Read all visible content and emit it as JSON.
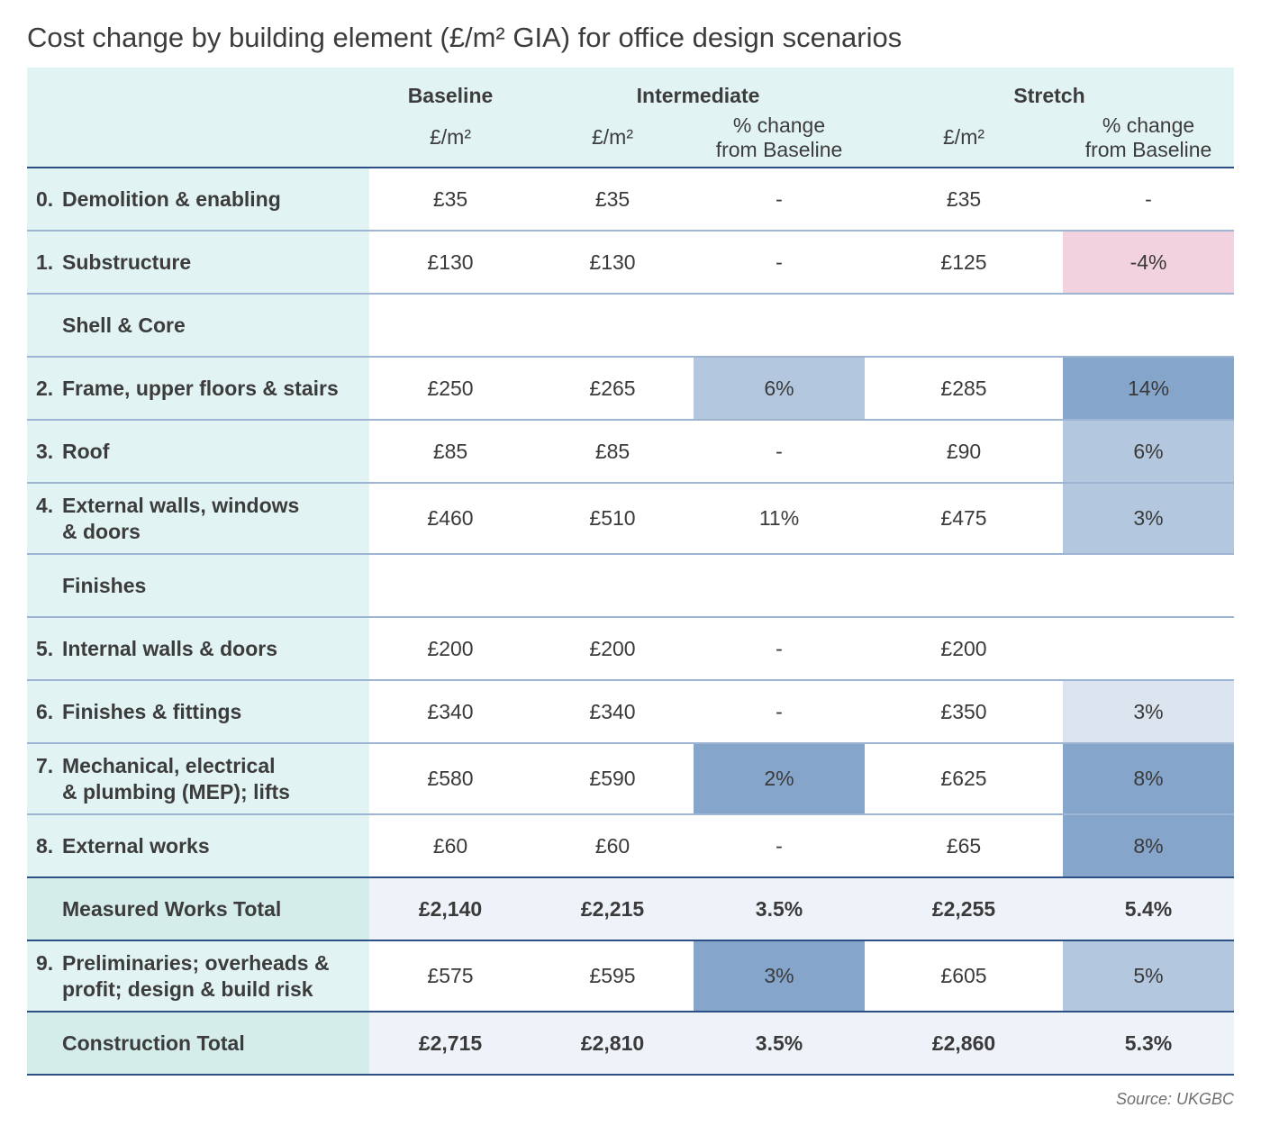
{
  "title": "Cost change by building element (£/m² GIA) for office design scenarios",
  "source": "Source: UKGBC",
  "colors": {
    "header_bg": "#e2f3f3",
    "total_bg": "#eef3f9",
    "negative": "#f2d2de",
    "light_blue": "#dbe4ef",
    "medium_blue": "#b3c7df",
    "dark_blue": "#85a5cb",
    "rule": "#2c4f86"
  },
  "chart_data": {
    "type": "table",
    "column_groups": [
      "Baseline",
      "Intermediate",
      "Stretch"
    ],
    "columns": [
      "£/m²",
      "£/m²",
      "% change\nfrom Baseline",
      "£/m²",
      "% change\nfrom Baseline"
    ],
    "rows": [
      {
        "num": "0.",
        "label": "Demolition & enabling",
        "cells": [
          "£35",
          "£35",
          "-",
          "£35",
          "-"
        ]
      },
      {
        "num": "1.",
        "label": "Substructure",
        "cells": [
          "£130",
          "£130",
          "-",
          "£125",
          "-4%"
        ]
      },
      {
        "section": "Shell & Core"
      },
      {
        "num": "2.",
        "label": "Frame, upper floors & stairs",
        "cells": [
          "£250",
          "£265",
          "6%",
          "£285",
          "14%"
        ]
      },
      {
        "num": "3.",
        "label": "Roof",
        "cells": [
          "£85",
          "£85",
          "-",
          "£90",
          "6%"
        ]
      },
      {
        "num": "4.",
        "label": "External walls, windows\n& doors",
        "cells": [
          "£460",
          "£510",
          "11%",
          "£475",
          "3%"
        ]
      },
      {
        "section": "Finishes"
      },
      {
        "num": "5.",
        "label": "Internal walls & doors",
        "cells": [
          "£200",
          "£200",
          "-",
          "£200",
          ""
        ]
      },
      {
        "num": "6.",
        "label": "Finishes & fittings",
        "cells": [
          "£340",
          "£340",
          "-",
          "£350",
          "3%"
        ]
      },
      {
        "num": "7.",
        "label": "Mechanical, electrical\n& plumbing (MEP); lifts",
        "cells": [
          "£580",
          "£590",
          "2%",
          "£625",
          "8%"
        ]
      },
      {
        "num": "8.",
        "label": "External works",
        "cells": [
          "£60",
          "£60",
          "-",
          "£65",
          "8%"
        ]
      },
      {
        "total": true,
        "label": "Measured Works Total",
        "cells": [
          "£2,140",
          "£2,215",
          "3.5%",
          "£2,255",
          "5.4%"
        ]
      },
      {
        "num": "9.",
        "label": "Preliminaries; overheads &\nprofit; design & build risk",
        "cells": [
          "£575",
          "£595",
          "3%",
          "£605",
          "5%"
        ]
      },
      {
        "total": true,
        "label": "Construction Total",
        "cells": [
          "£2,715",
          "£2,810",
          "3.5%",
          "£2,860",
          "5.3%"
        ]
      }
    ]
  }
}
